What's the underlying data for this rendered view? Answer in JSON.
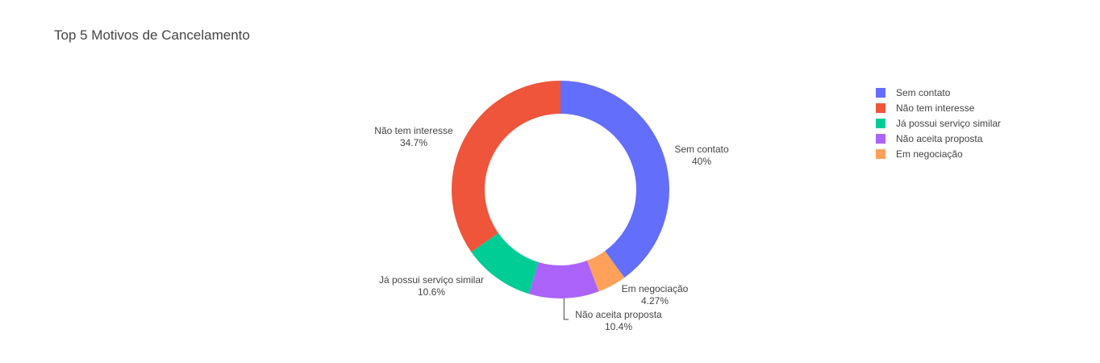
{
  "title": "Top 5 Motivos de Cancelamento",
  "chart_data": {
    "type": "pie",
    "hole": true,
    "title": "Top 5 Motivos de Cancelamento",
    "legend_position": "top-right",
    "slices": [
      {
        "label": "Sem contato",
        "percent": 40.0,
        "percent_text": "40%",
        "color": "#636efa"
      },
      {
        "label": "Em negociação",
        "percent": 4.27,
        "percent_text": "4.27%",
        "color": "#ffa15a"
      },
      {
        "label": "Não aceita proposta",
        "percent": 10.4,
        "percent_text": "10.4%",
        "color": "#ab63fa"
      },
      {
        "label": "Já possui serviço similar",
        "percent": 10.6,
        "percent_text": "10.6%",
        "color": "#00cc96"
      },
      {
        "label": "Não tem interesse",
        "percent": 34.7,
        "percent_text": "34.7%",
        "color": "#ef553b"
      }
    ]
  },
  "legend": {
    "items": [
      {
        "label": "Sem contato",
        "color": "#636efa"
      },
      {
        "label": "Não tem interesse",
        "color": "#ef553b"
      },
      {
        "label": "Já possui serviço similar",
        "color": "#00cc96"
      },
      {
        "label": "Não aceita proposta",
        "color": "#ab63fa"
      },
      {
        "label": "Em negociação",
        "color": "#ffa15a"
      }
    ]
  }
}
